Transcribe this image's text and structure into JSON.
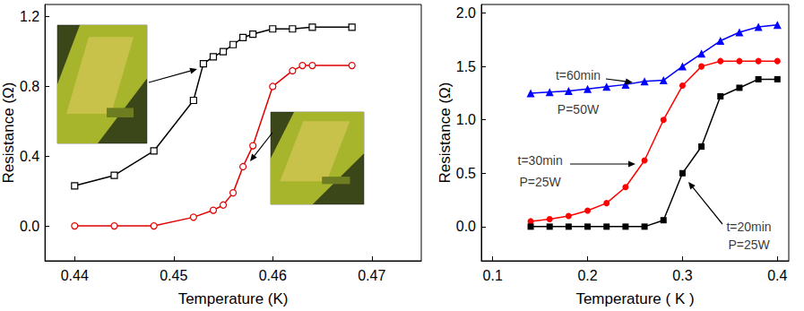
{
  "chart_data": [
    {
      "type": "line",
      "xlabel": "Temperature (K)",
      "ylabel": "Resistance (Ω)",
      "xlim": [
        0.437,
        0.475
      ],
      "ylim": [
        -0.2,
        1.27
      ],
      "xticks": [
        0.44,
        0.45,
        0.46,
        0.47
      ],
      "yticks": [
        {
          "value": 0,
          "label": "0.0"
        },
        0.4,
        0.8,
        1.2
      ],
      "grid": false,
      "series": [
        {
          "color": "#000000",
          "marker": "hollow_square",
          "x": [
            0.44,
            0.444,
            0.448,
            0.452,
            0.453,
            0.454,
            0.455,
            0.456,
            0.457,
            0.458,
            0.46,
            0.462,
            0.464,
            0.468
          ],
          "values": [
            0.23,
            0.29,
            0.43,
            0.72,
            0.93,
            0.97,
            1.0,
            1.04,
            1.08,
            1.1,
            1.13,
            1.13,
            1.14,
            1.14
          ]
        },
        {
          "color": "#e00000",
          "marker": "hollow_circle",
          "x": [
            0.44,
            0.444,
            0.448,
            0.452,
            0.454,
            0.455,
            0.456,
            0.457,
            0.458,
            0.46,
            0.462,
            0.463,
            0.464,
            0.468
          ],
          "values": [
            0.0,
            0.0,
            0.0,
            0.05,
            0.09,
            0.12,
            0.19,
            0.34,
            0.46,
            0.8,
            0.89,
            0.92,
            0.92,
            0.92
          ]
        }
      ]
    },
    {
      "type": "line",
      "xlabel": "Temperature ( K )",
      "ylabel": "Resistance (Ω)",
      "xlim": [
        0.088,
        0.412
      ],
      "ylim": [
        -0.32,
        2.08
      ],
      "xticks": [
        0.1,
        0.2,
        0.3,
        0.4
      ],
      "yticks": [
        {
          "value": 0,
          "label": "0.0"
        },
        0.5,
        {
          "value": 1,
          "label": "1.0"
        },
        1.5,
        {
          "value": 2,
          "label": "2.0"
        }
      ],
      "grid": false,
      "x": [
        0.14,
        0.16,
        0.18,
        0.2,
        0.22,
        0.24,
        0.26,
        0.28,
        0.3,
        0.32,
        0.34,
        0.36,
        0.38,
        0.4
      ],
      "series": [
        {
          "color": "#0000ff",
          "marker": "triangle",
          "values": [
            1.25,
            1.26,
            1.27,
            1.29,
            1.31,
            1.33,
            1.36,
            1.37,
            1.5,
            1.62,
            1.74,
            1.82,
            1.87,
            1.89
          ]
        },
        {
          "color": "#ff0000",
          "marker": "circle",
          "values": [
            0.05,
            0.07,
            0.1,
            0.15,
            0.22,
            0.37,
            0.62,
            1.0,
            1.32,
            1.5,
            1.55,
            1.55,
            1.55,
            1.55
          ]
        },
        {
          "color": "#000000",
          "marker": "square",
          "values": [
            0.0,
            0.0,
            0.0,
            0.0,
            0.0,
            0.0,
            0.0,
            0.06,
            0.5,
            0.75,
            1.22,
            1.3,
            1.38,
            1.38
          ]
        }
      ],
      "annotations": [
        {
          "text": "t=60min",
          "x": 0.19,
          "y": 1.42
        },
        {
          "text": "P=50W",
          "x": 0.19,
          "y": 1.1
        },
        {
          "text": "t=30min",
          "x": 0.15,
          "y": 0.62
        },
        {
          "text": "P=25W",
          "x": 0.15,
          "y": 0.42
        },
        {
          "text": "t=20min",
          "x": 0.37,
          "y": 0.0
        },
        {
          "text": "P=25W",
          "x": 0.37,
          "y": -0.17
        }
      ]
    }
  ]
}
